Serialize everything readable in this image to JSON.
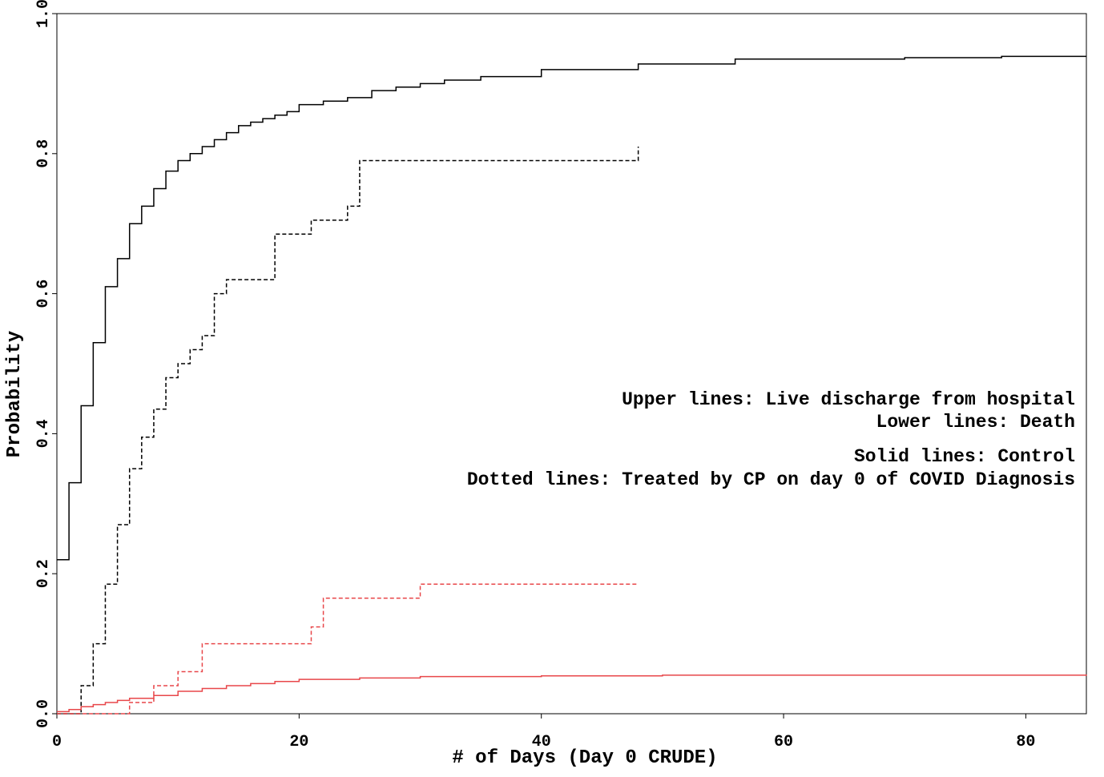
{
  "chart_data": {
    "type": "step",
    "xlabel": "# of Days (Day 0 CRUDE)",
    "ylabel": "Probability",
    "xlim": [
      0,
      85
    ],
    "ylim": [
      0,
      1
    ],
    "xticks": [
      0,
      20,
      40,
      60,
      80
    ],
    "yticks": [
      {
        "value": 0,
        "label": "0.0"
      },
      0.2,
      0.4,
      0.6,
      0.8,
      {
        "value": 1,
        "label": "1.0"
      }
    ],
    "annotations": [
      "Upper lines: Live discharge from hospital",
      "Lower lines: Death",
      "Solid lines: Control",
      "Dotted lines: Treated by CP on day 0 of COVID Diagnosis"
    ],
    "series": [
      {
        "color": "#000000",
        "linestyle": "solid",
        "x": [
          0,
          1,
          2,
          3,
          4,
          5,
          6,
          7,
          8,
          9,
          10,
          11,
          12,
          13,
          14,
          15,
          16,
          17,
          18,
          19,
          20,
          22,
          24,
          26,
          28,
          30,
          32,
          35,
          40,
          48,
          56,
          70,
          78,
          85
        ],
        "values": [
          0.22,
          0.33,
          0.44,
          0.53,
          0.61,
          0.65,
          0.7,
          0.725,
          0.75,
          0.775,
          0.79,
          0.8,
          0.81,
          0.82,
          0.83,
          0.84,
          0.845,
          0.85,
          0.855,
          0.86,
          0.87,
          0.875,
          0.88,
          0.89,
          0.895,
          0.9,
          0.905,
          0.91,
          0.92,
          0.928,
          0.935,
          0.937,
          0.939,
          0.939
        ]
      },
      {
        "color": "#000000",
        "linestyle": "dashed",
        "x": [
          0,
          2,
          3,
          4,
          5,
          6,
          7,
          8,
          9,
          10,
          11,
          12,
          13,
          14,
          18,
          21,
          24,
          25,
          48
        ],
        "values": [
          0,
          0.04,
          0.1,
          0.185,
          0.27,
          0.35,
          0.395,
          0.435,
          0.48,
          0.5,
          0.52,
          0.54,
          0.6,
          0.62,
          0.685,
          0.705,
          0.725,
          0.79,
          0.81
        ]
      },
      {
        "color": "#e8474a",
        "linestyle": "solid",
        "x": [
          0,
          1,
          2,
          3,
          4,
          5,
          6,
          8,
          10,
          12,
          14,
          16,
          18,
          20,
          25,
          30,
          40,
          50,
          85
        ],
        "values": [
          0.003,
          0.006,
          0.01,
          0.013,
          0.016,
          0.019,
          0.022,
          0.026,
          0.032,
          0.036,
          0.04,
          0.043,
          0.046,
          0.049,
          0.051,
          0.053,
          0.054,
          0.055,
          0.056
        ]
      },
      {
        "color": "#e8474a",
        "linestyle": "dashed",
        "x": [
          0,
          6,
          8,
          10,
          12,
          21,
          22,
          30,
          48
        ],
        "values": [
          0,
          0.016,
          0.04,
          0.06,
          0.1,
          0.124,
          0.165,
          0.185,
          0.185
        ]
      }
    ]
  }
}
